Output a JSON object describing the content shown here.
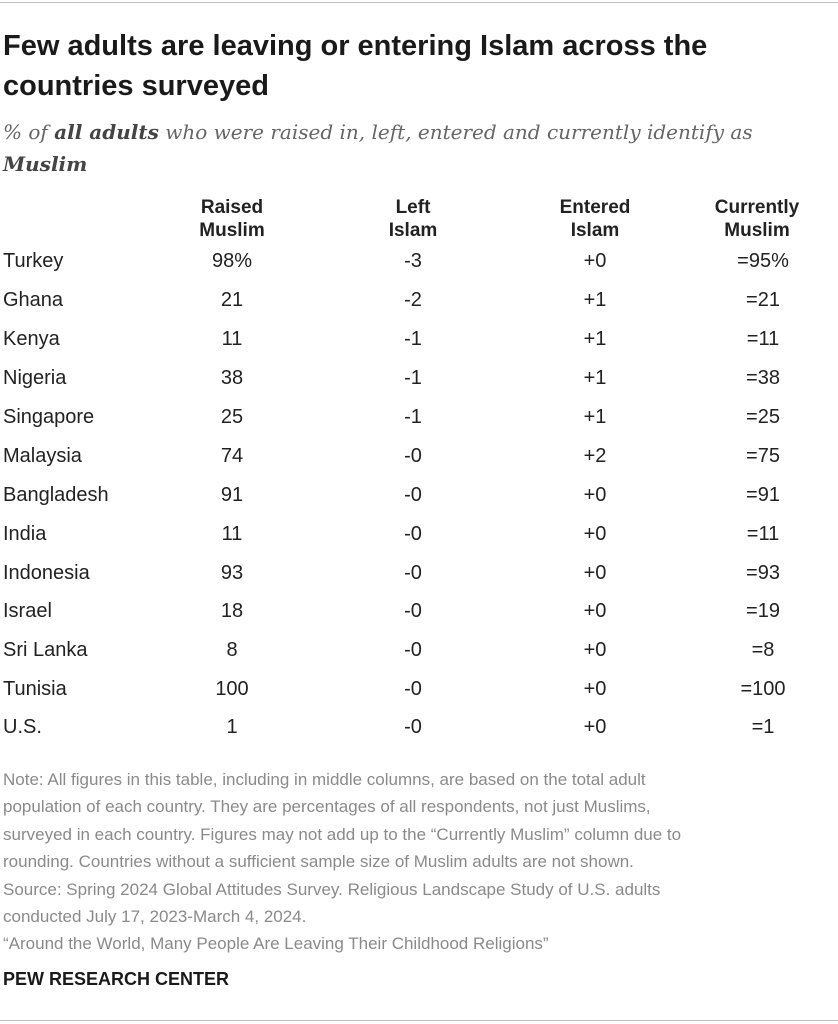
{
  "title": "Few adults are leaving or entering Islam across the countries surveyed",
  "subtitle": {
    "prefix": "% of ",
    "emphasis1": "all adults",
    "middle": " who were raised in, left, entered and currently identify as ",
    "emphasis2": "Muslim"
  },
  "chart_data": {
    "type": "table",
    "columns": [
      {
        "line1": "Raised",
        "line2": "Muslim"
      },
      {
        "line1": "Left",
        "line2": "Islam"
      },
      {
        "line1": "Entered",
        "line2": "Islam"
      },
      {
        "line1": "Currently",
        "line2": "Muslim"
      }
    ],
    "rows": [
      {
        "country": "Turkey",
        "raised": "98%",
        "left": "-3",
        "entered": "+0",
        "current": "=95%"
      },
      {
        "country": "Ghana",
        "raised": "21",
        "left": "-2",
        "entered": "+1",
        "current": "=21"
      },
      {
        "country": "Kenya",
        "raised": "11",
        "left": "-1",
        "entered": "+1",
        "current": "=11"
      },
      {
        "country": "Nigeria",
        "raised": "38",
        "left": "-1",
        "entered": "+1",
        "current": "=38"
      },
      {
        "country": "Singapore",
        "raised": "25",
        "left": "-1",
        "entered": "+1",
        "current": "=25"
      },
      {
        "country": "Malaysia",
        "raised": "74",
        "left": "-0",
        "entered": "+2",
        "current": "=75"
      },
      {
        "country": "Bangladesh",
        "raised": "91",
        "left": "-0",
        "entered": "+0",
        "current": "=91"
      },
      {
        "country": "India",
        "raised": "11",
        "left": "-0",
        "entered": "+0",
        "current": "=11"
      },
      {
        "country": "Indonesia",
        "raised": "93",
        "left": "-0",
        "entered": "+0",
        "current": "=93"
      },
      {
        "country": "Israel",
        "raised": "18",
        "left": "-0",
        "entered": "+0",
        "current": "=19"
      },
      {
        "country": "Sri Lanka",
        "raised": "8",
        "left": "-0",
        "entered": "+0",
        "current": "=8"
      },
      {
        "country": "Tunisia",
        "raised": "100",
        "left": "-0",
        "entered": "+0",
        "current": "=100"
      },
      {
        "country": "U.S.",
        "raised": "1",
        "left": "-0",
        "entered": "+0",
        "current": "=1"
      }
    ]
  },
  "note": {
    "line1": "Note: All figures in this table, including in middle columns, are based on the total adult",
    "line2": "population of each country. They are percentages of all respondents, not just Muslims,",
    "line3": "surveyed in each country. Figures may not add up to the “Currently Muslim” column due to",
    "line4": "rounding. Countries without a sufficient sample size of Muslim adults are not shown.",
    "line5": "Source: Spring 2024 Global Attitudes Survey. Religious Landscape Study of U.S. adults",
    "line6": "conducted July 17, 2023-March 4, 2024.",
    "line7": "“Around the World, Many People Are Leaving Their Childhood Religions”"
  },
  "brand": "PEW RESEARCH CENTER"
}
